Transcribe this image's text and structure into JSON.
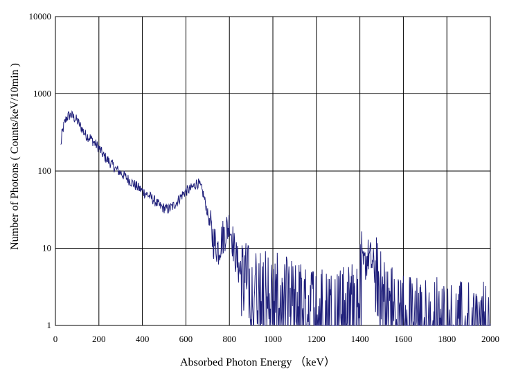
{
  "chart_data": {
    "type": "line",
    "title": "",
    "xlabel": "Absorbed Photon Energy （keV）",
    "ylabel": "Number  of Photons ( Counts/keV/10min  )",
    "xlim": [
      0,
      2000
    ],
    "ylim": [
      1,
      10000
    ],
    "yscale": "log",
    "grid": true,
    "legend": "none",
    "x_ticks": [
      "0",
      "200",
      "400",
      "600",
      "800",
      "1000",
      "1200",
      "1400",
      "1600",
      "1800",
      "2000"
    ],
    "y_ticks": [
      "1",
      "10",
      "100",
      "1000",
      "10000"
    ],
    "line_color": "#1f1f7a",
    "series": [
      {
        "x": [
          25,
          30,
          40,
          50,
          60,
          70,
          80,
          90,
          100,
          120,
          140,
          160,
          180,
          200,
          220,
          250,
          280,
          300,
          330,
          360,
          400,
          430,
          460,
          480,
          500,
          520,
          540,
          560,
          580,
          600,
          620,
          640,
          650,
          660,
          670,
          680,
          690,
          700,
          710,
          720,
          730,
          740,
          750,
          760,
          770,
          780,
          790,
          800,
          810,
          820,
          840,
          860,
          880,
          900,
          950,
          1000,
          1050,
          1100,
          1150,
          1200,
          1250,
          1300,
          1350,
          1380,
          1400,
          1420,
          1440,
          1450,
          1460,
          1480,
          1500,
          1550,
          1600,
          1650,
          1700,
          1750,
          1800,
          1850,
          1900,
          1950,
          2000
        ],
        "y": [
          210,
          300,
          400,
          480,
          520,
          530,
          510,
          480,
          450,
          360,
          290,
          270,
          230,
          200,
          160,
          130,
          105,
          95,
          80,
          68,
          55,
          48,
          40,
          35,
          33,
          32,
          35,
          40,
          48,
          55,
          58,
          65,
          70,
          68,
          60,
          50,
          38,
          28,
          20,
          15,
          12,
          11,
          10,
          12,
          14,
          16,
          18,
          20,
          16,
          10,
          6,
          4,
          3.5,
          3,
          2.8,
          2.6,
          2.3,
          2.1,
          2,
          1.8,
          1.7,
          1.6,
          1.8,
          2.5,
          4,
          6,
          8,
          7,
          6,
          4,
          2.5,
          1.8,
          1.5,
          1.3,
          1.2,
          1.3,
          1.1,
          1.1,
          1.05,
          1.05,
          1.05
        ]
      }
    ]
  }
}
